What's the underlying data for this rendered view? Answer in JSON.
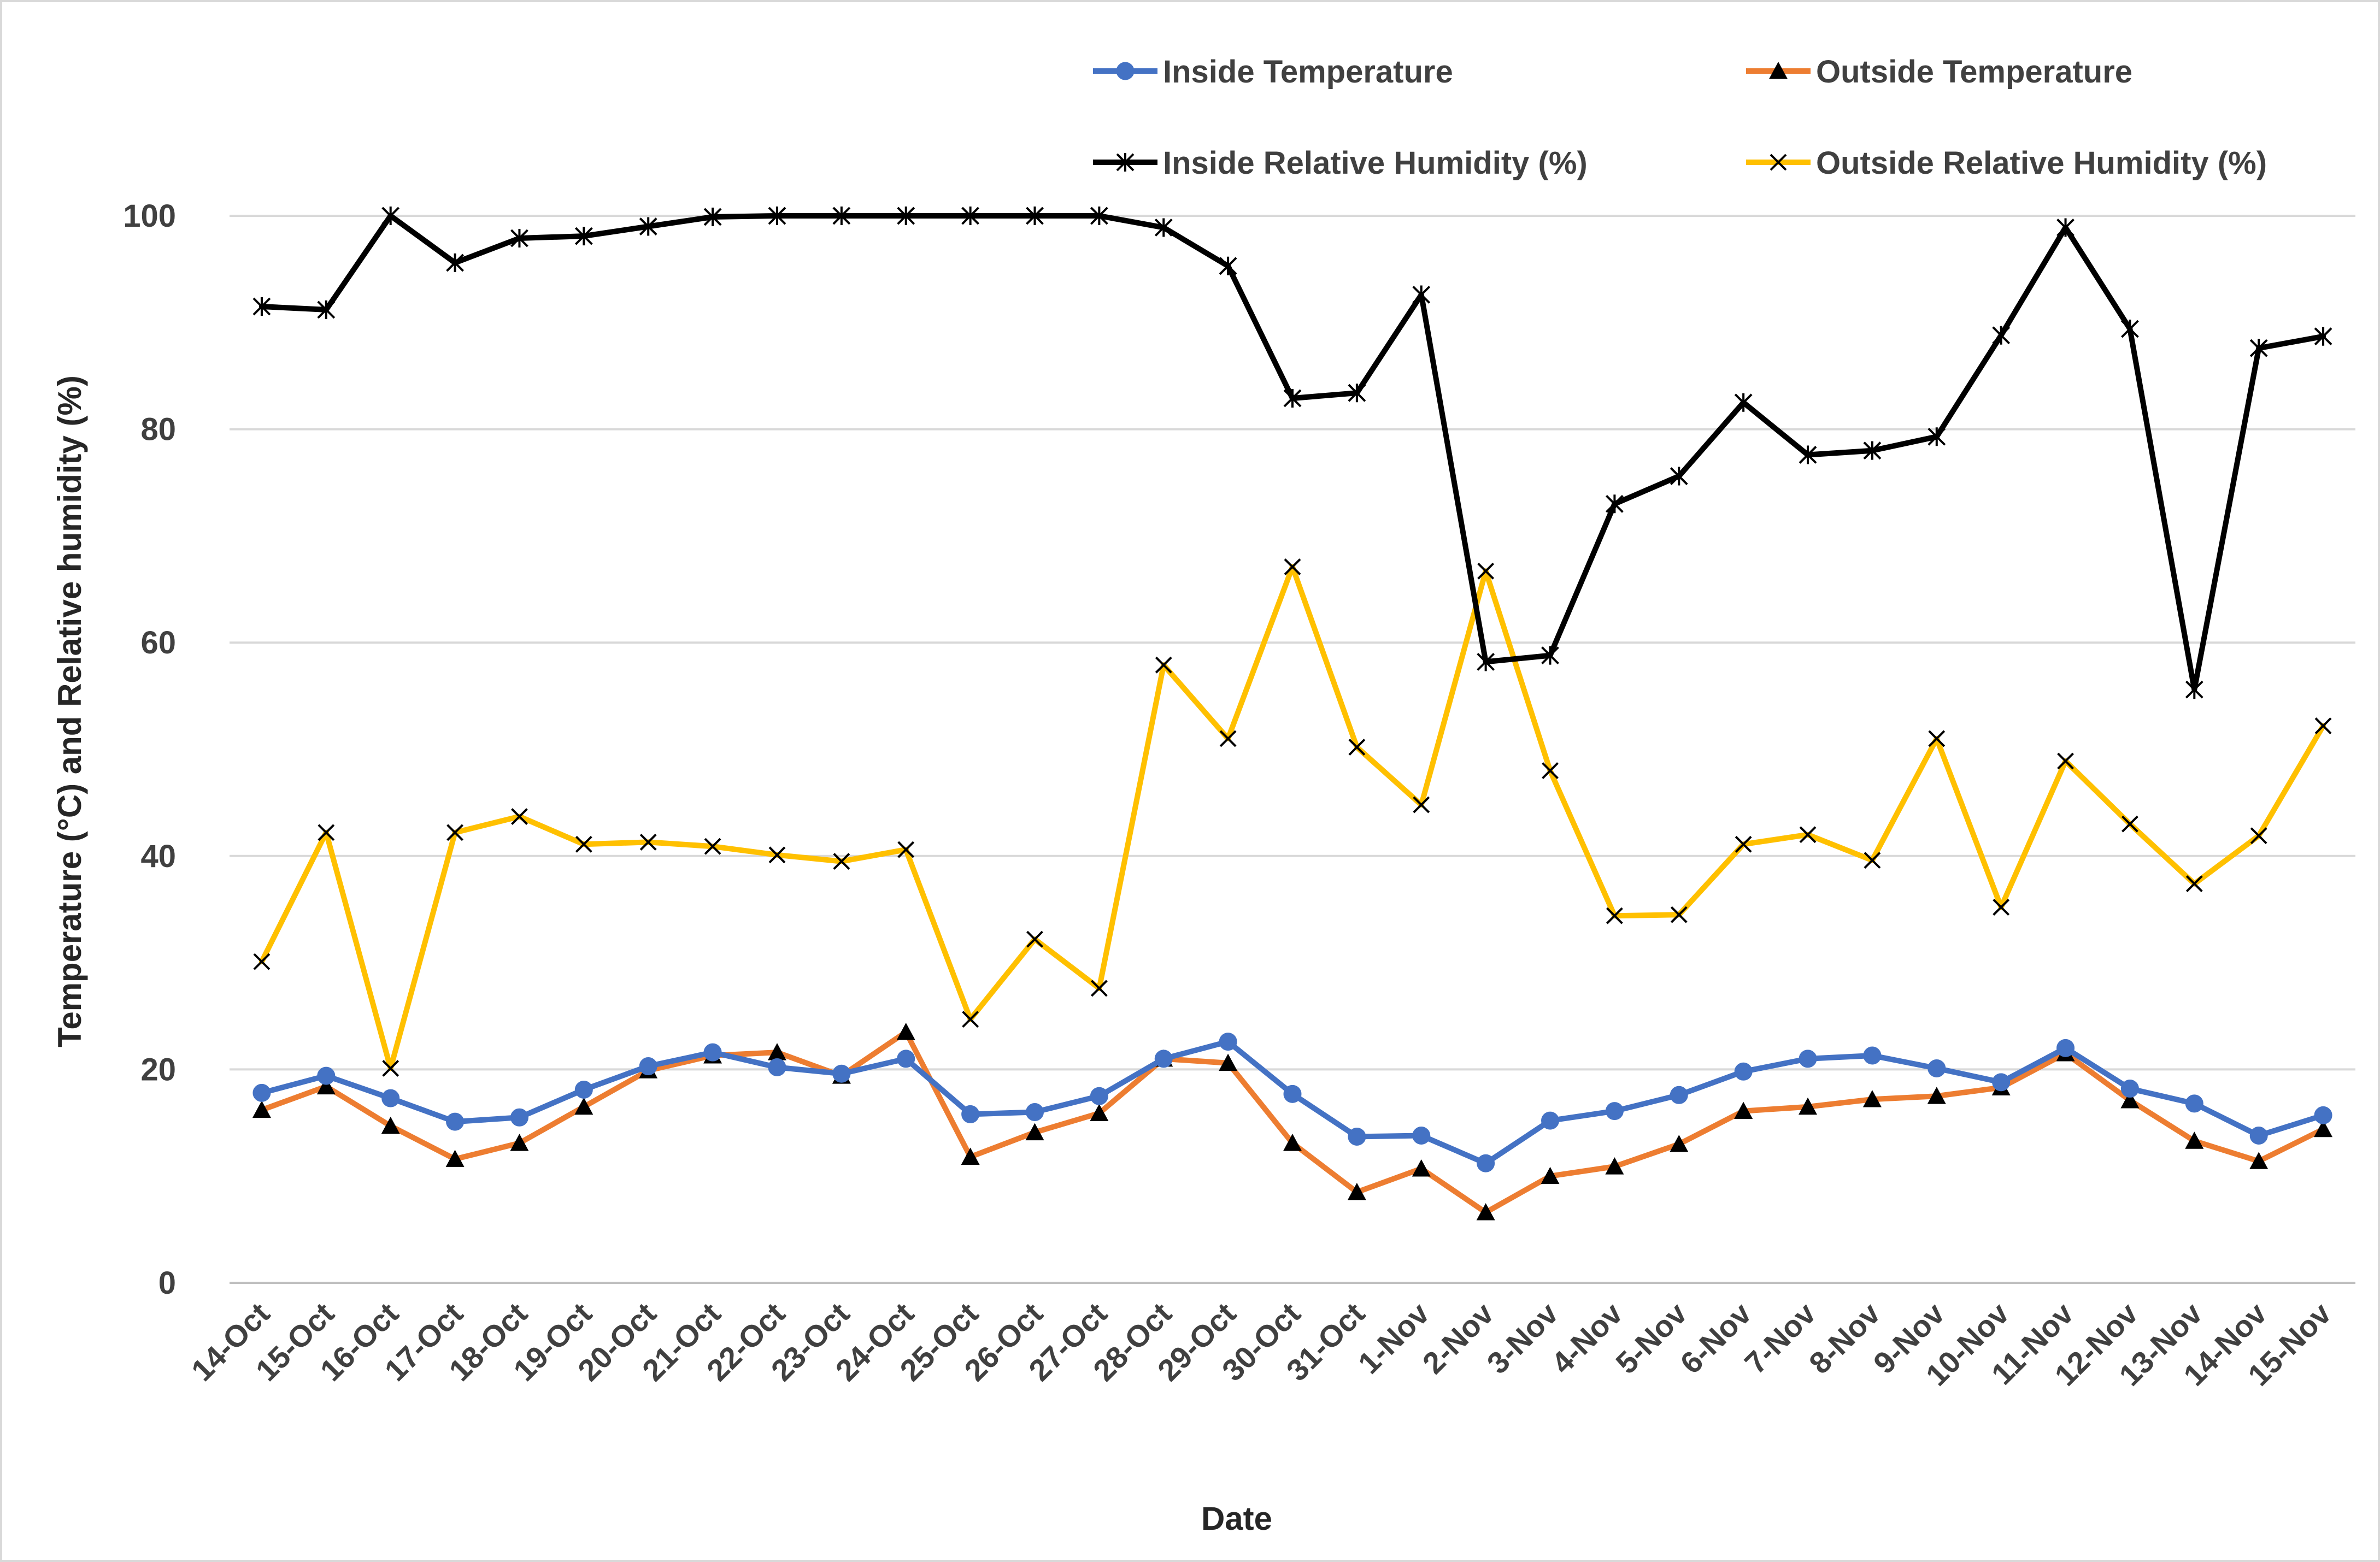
{
  "chart_data": {
    "type": "line",
    "title": "",
    "xlabel": "Date",
    "ylabel": "Temperature (°C) and Relative humidity (%)",
    "ylim": [
      0,
      100
    ],
    "yticks": [
      0,
      20,
      40,
      60,
      80,
      100
    ],
    "grid": true,
    "legend_position": "top-right",
    "categories": [
      "14-Oct",
      "15-Oct",
      "16-Oct",
      "17-Oct",
      "18-Oct",
      "19-Oct",
      "20-Oct",
      "21-Oct",
      "22-Oct",
      "23-Oct",
      "24-Oct",
      "25-Oct",
      "26-Oct",
      "27-Oct",
      "28-Oct",
      "29-Oct",
      "30-Oct",
      "31-Oct",
      "1-Nov",
      "2-Nov",
      "3-Nov",
      "4-Nov",
      "5-Nov",
      "6-Nov",
      "7-Nov",
      "8-Nov",
      "9-Nov",
      "10-Nov",
      "11-Nov",
      "12-Nov",
      "13-Nov",
      "14-Nov",
      "15-Nov"
    ],
    "series": [
      {
        "name": "Inside Temperature",
        "color": "#4472c4",
        "marker": "circle",
        "values": [
          17.8,
          19.4,
          17.3,
          15.1,
          15.5,
          18.1,
          20.3,
          21.6,
          20.2,
          19.6,
          21.0,
          15.8,
          16.0,
          17.5,
          21.0,
          22.6,
          17.7,
          13.7,
          13.8,
          11.2,
          15.2,
          16.1,
          17.6,
          19.8,
          21.0,
          21.3,
          20.1,
          18.8,
          22.0,
          18.2,
          16.8,
          13.8,
          15.7
        ]
      },
      {
        "name": "Outside Temperature",
        "color": "#ed7d31",
        "marker": "triangle",
        "values": [
          16.2,
          18.4,
          14.7,
          11.6,
          13.1,
          16.5,
          19.9,
          21.3,
          21.6,
          19.4,
          23.5,
          11.8,
          14.1,
          15.9,
          21.0,
          20.6,
          13.1,
          8.5,
          10.7,
          6.6,
          10.0,
          10.9,
          13.0,
          16.1,
          16.5,
          17.2,
          17.5,
          18.3,
          21.5,
          17.1,
          13.3,
          11.4,
          14.4
        ]
      },
      {
        "name": "Inside Relative Humidity (%)",
        "color": "#000000",
        "marker": "star",
        "values": [
          91.5,
          91.2,
          100,
          95.6,
          97.9,
          98.1,
          99.0,
          99.9,
          100,
          100,
          100,
          100,
          100,
          100,
          98.9,
          95.3,
          82.9,
          83.4,
          92.6,
          58.2,
          58.8,
          73.0,
          75.6,
          82.5,
          77.6,
          78.0,
          79.3,
          88.8,
          98.9,
          89.4,
          55.6,
          87.6,
          88.7
        ]
      },
      {
        "name": "Outside Relative Humidity (%)",
        "color": "#ffc000",
        "marker": "x",
        "values": [
          30.1,
          42.2,
          20.1,
          42.2,
          43.7,
          41.1,
          41.3,
          40.9,
          40.1,
          39.5,
          40.6,
          24.7,
          32.2,
          27.6,
          57.9,
          51.0,
          67.1,
          50.2,
          44.8,
          66.7,
          48.0,
          34.4,
          34.5,
          41.1,
          42.0,
          39.6,
          51.0,
          35.2,
          48.9,
          43.0,
          37.4,
          41.9,
          52.2
        ]
      }
    ]
  }
}
